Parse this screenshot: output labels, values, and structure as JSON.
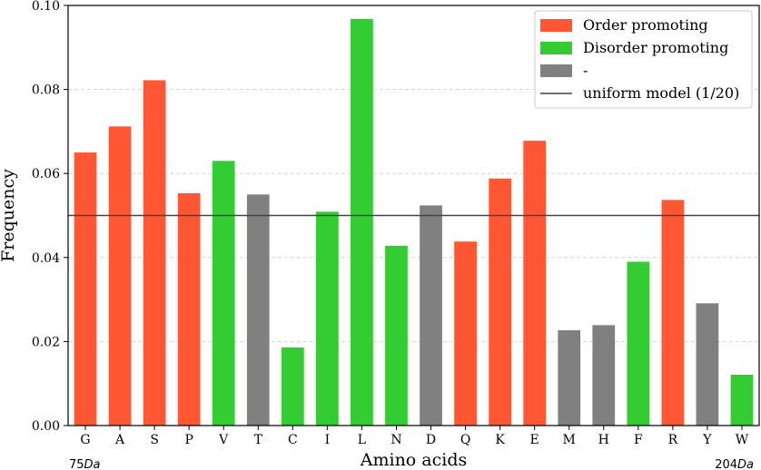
{
  "chart_data": {
    "type": "bar",
    "xlabel": "Amino acids",
    "ylabel": "Frequency",
    "ylim": [
      0,
      0.1
    ],
    "yticks": [
      "0.00",
      "0.02",
      "0.04",
      "0.06",
      "0.08",
      "0.10"
    ],
    "categories": [
      "G",
      "A",
      "S",
      "P",
      "V",
      "T",
      "C",
      "I",
      "L",
      "N",
      "D",
      "Q",
      "K",
      "E",
      "M",
      "H",
      "F",
      "R",
      "Y",
      "W"
    ],
    "values": [
      0.065,
      0.0712,
      0.0822,
      0.0553,
      0.063,
      0.055,
      0.0186,
      0.0509,
      0.0968,
      0.0428,
      0.0524,
      0.0438,
      0.0588,
      0.0678,
      0.0227,
      0.0239,
      0.039,
      0.0537,
      0.0291,
      0.0121
    ],
    "classes": [
      "order",
      "order",
      "order",
      "order",
      "disorder",
      "neutral",
      "disorder",
      "disorder",
      "disorder",
      "disorder",
      "neutral",
      "order",
      "order",
      "order",
      "neutral",
      "neutral",
      "disorder",
      "order",
      "neutral",
      "disorder"
    ],
    "colors": {
      "order": "#ff5733",
      "disorder": "#33cc33",
      "neutral": "#808080",
      "uniform": "#444444"
    },
    "uniform_value": 0.05,
    "grid": "y-dashed",
    "legend_position": "top-right",
    "legend": [
      {
        "key": "order",
        "label": "Order promoting"
      },
      {
        "key": "disorder",
        "label": "Disorder promoting"
      },
      {
        "key": "neutral",
        "label": "-"
      },
      {
        "key": "uniform",
        "label": "uniform model (1/20)"
      }
    ],
    "annotations": {
      "left": "75Da",
      "right": "204Da"
    }
  }
}
